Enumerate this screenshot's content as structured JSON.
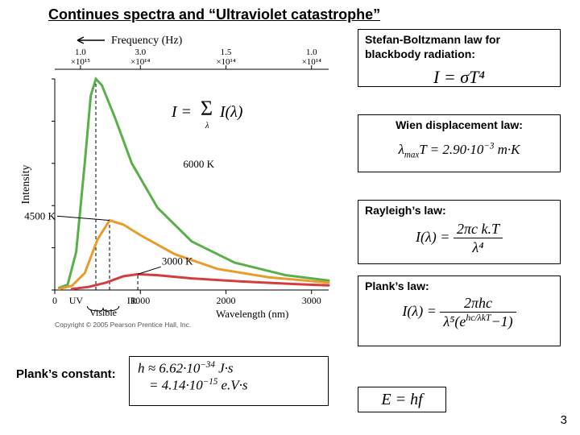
{
  "title": "Continues spectra and “Ultraviolet catastrophe”",
  "page_number": "3",
  "chart": {
    "type": "line",
    "x_axis": {
      "label": "Wavelength (nm)",
      "ticks": [
        0,
        1000,
        2000,
        3000
      ],
      "min": 0,
      "max": 3200
    },
    "y_axis": {
      "label": "Intensity",
      "ticks_visible": true
    },
    "top_axis": {
      "label": "Frequency (Hz)",
      "arrow": "left",
      "tick_labels": [
        "1.0×10¹⁵",
        "3.0×10¹⁴",
        "1.5×10¹⁴",
        "1.0×10¹⁴"
      ],
      "tick_positions": [
        300,
        1000,
        2000,
        3000
      ]
    },
    "visible_band": {
      "start": 380,
      "end": 750,
      "labels": [
        "UV",
        "Visible",
        "IR"
      ]
    },
    "series": [
      {
        "name": "6000 K",
        "color": "#59b04a",
        "stroke": 3,
        "peak_lambda": 480,
        "points": [
          [
            50,
            0.01
          ],
          [
            150,
            0.025
          ],
          [
            250,
            0.18
          ],
          [
            350,
            0.6
          ],
          [
            420,
            0.92
          ],
          [
            480,
            1.0
          ],
          [
            550,
            0.97
          ],
          [
            700,
            0.82
          ],
          [
            900,
            0.6
          ],
          [
            1200,
            0.39
          ],
          [
            1600,
            0.23
          ],
          [
            2100,
            0.13
          ],
          [
            2700,
            0.07
          ],
          [
            3200,
            0.045
          ]
        ]
      },
      {
        "name": "4500 K",
        "color": "#e99b2c",
        "stroke": 3,
        "peak_lambda": 640,
        "points": [
          [
            50,
            0.005
          ],
          [
            200,
            0.02
          ],
          [
            350,
            0.08
          ],
          [
            500,
            0.24
          ],
          [
            640,
            0.33
          ],
          [
            800,
            0.31
          ],
          [
            1000,
            0.26
          ],
          [
            1400,
            0.17
          ],
          [
            1900,
            0.1
          ],
          [
            2500,
            0.06
          ],
          [
            3200,
            0.035
          ]
        ]
      },
      {
        "name": "3000 K",
        "color": "#d43d3d",
        "stroke": 3,
        "peak_lambda": 970,
        "points": [
          [
            200,
            0.005
          ],
          [
            400,
            0.015
          ],
          [
            600,
            0.035
          ],
          [
            800,
            0.065
          ],
          [
            970,
            0.075
          ],
          [
            1200,
            0.07
          ],
          [
            1600,
            0.055
          ],
          [
            2200,
            0.04
          ],
          [
            2800,
            0.028
          ],
          [
            3200,
            0.022
          ]
        ]
      }
    ],
    "inline_formula": "I = Σₗ I(λ)",
    "copyright": "Copyright © 2005 Pearson Prentice Hall, Inc.",
    "background_color": "#ffffff",
    "axis_color": "#000000",
    "grid": false
  },
  "boxes": {
    "stefan": {
      "label": "Stefan-Boltzmann law for blackbody radiation:",
      "formula": "I = σT⁴"
    },
    "wien": {
      "label": "Wien displacement law:",
      "formula_parts": [
        "λ",
        "max",
        "T = 2.90·10",
        "−3",
        " m·K"
      ]
    },
    "rayleigh": {
      "label": "Rayleigh’s law:",
      "num": "2πc k.T",
      "den": "λ⁴",
      "lhs": "I(λ) ="
    },
    "plank": {
      "label": "Plank’s law:",
      "lhs": "I(λ) =",
      "num": "2πhc",
      "den_a": "λ⁵(e",
      "den_exp": "hc/λkT",
      "den_b": "−1)"
    },
    "plank_const": {
      "label": "Plank’s constant:",
      "line1_a": "h ≈ 6.62·10",
      "line1_exp": "−34",
      "line1_b": " J·s",
      "line2_a": "= 4.14·10",
      "line2_exp": "−15",
      "line2_b": " e.V·s"
    },
    "ehf": {
      "formula": "E = hf"
    }
  }
}
